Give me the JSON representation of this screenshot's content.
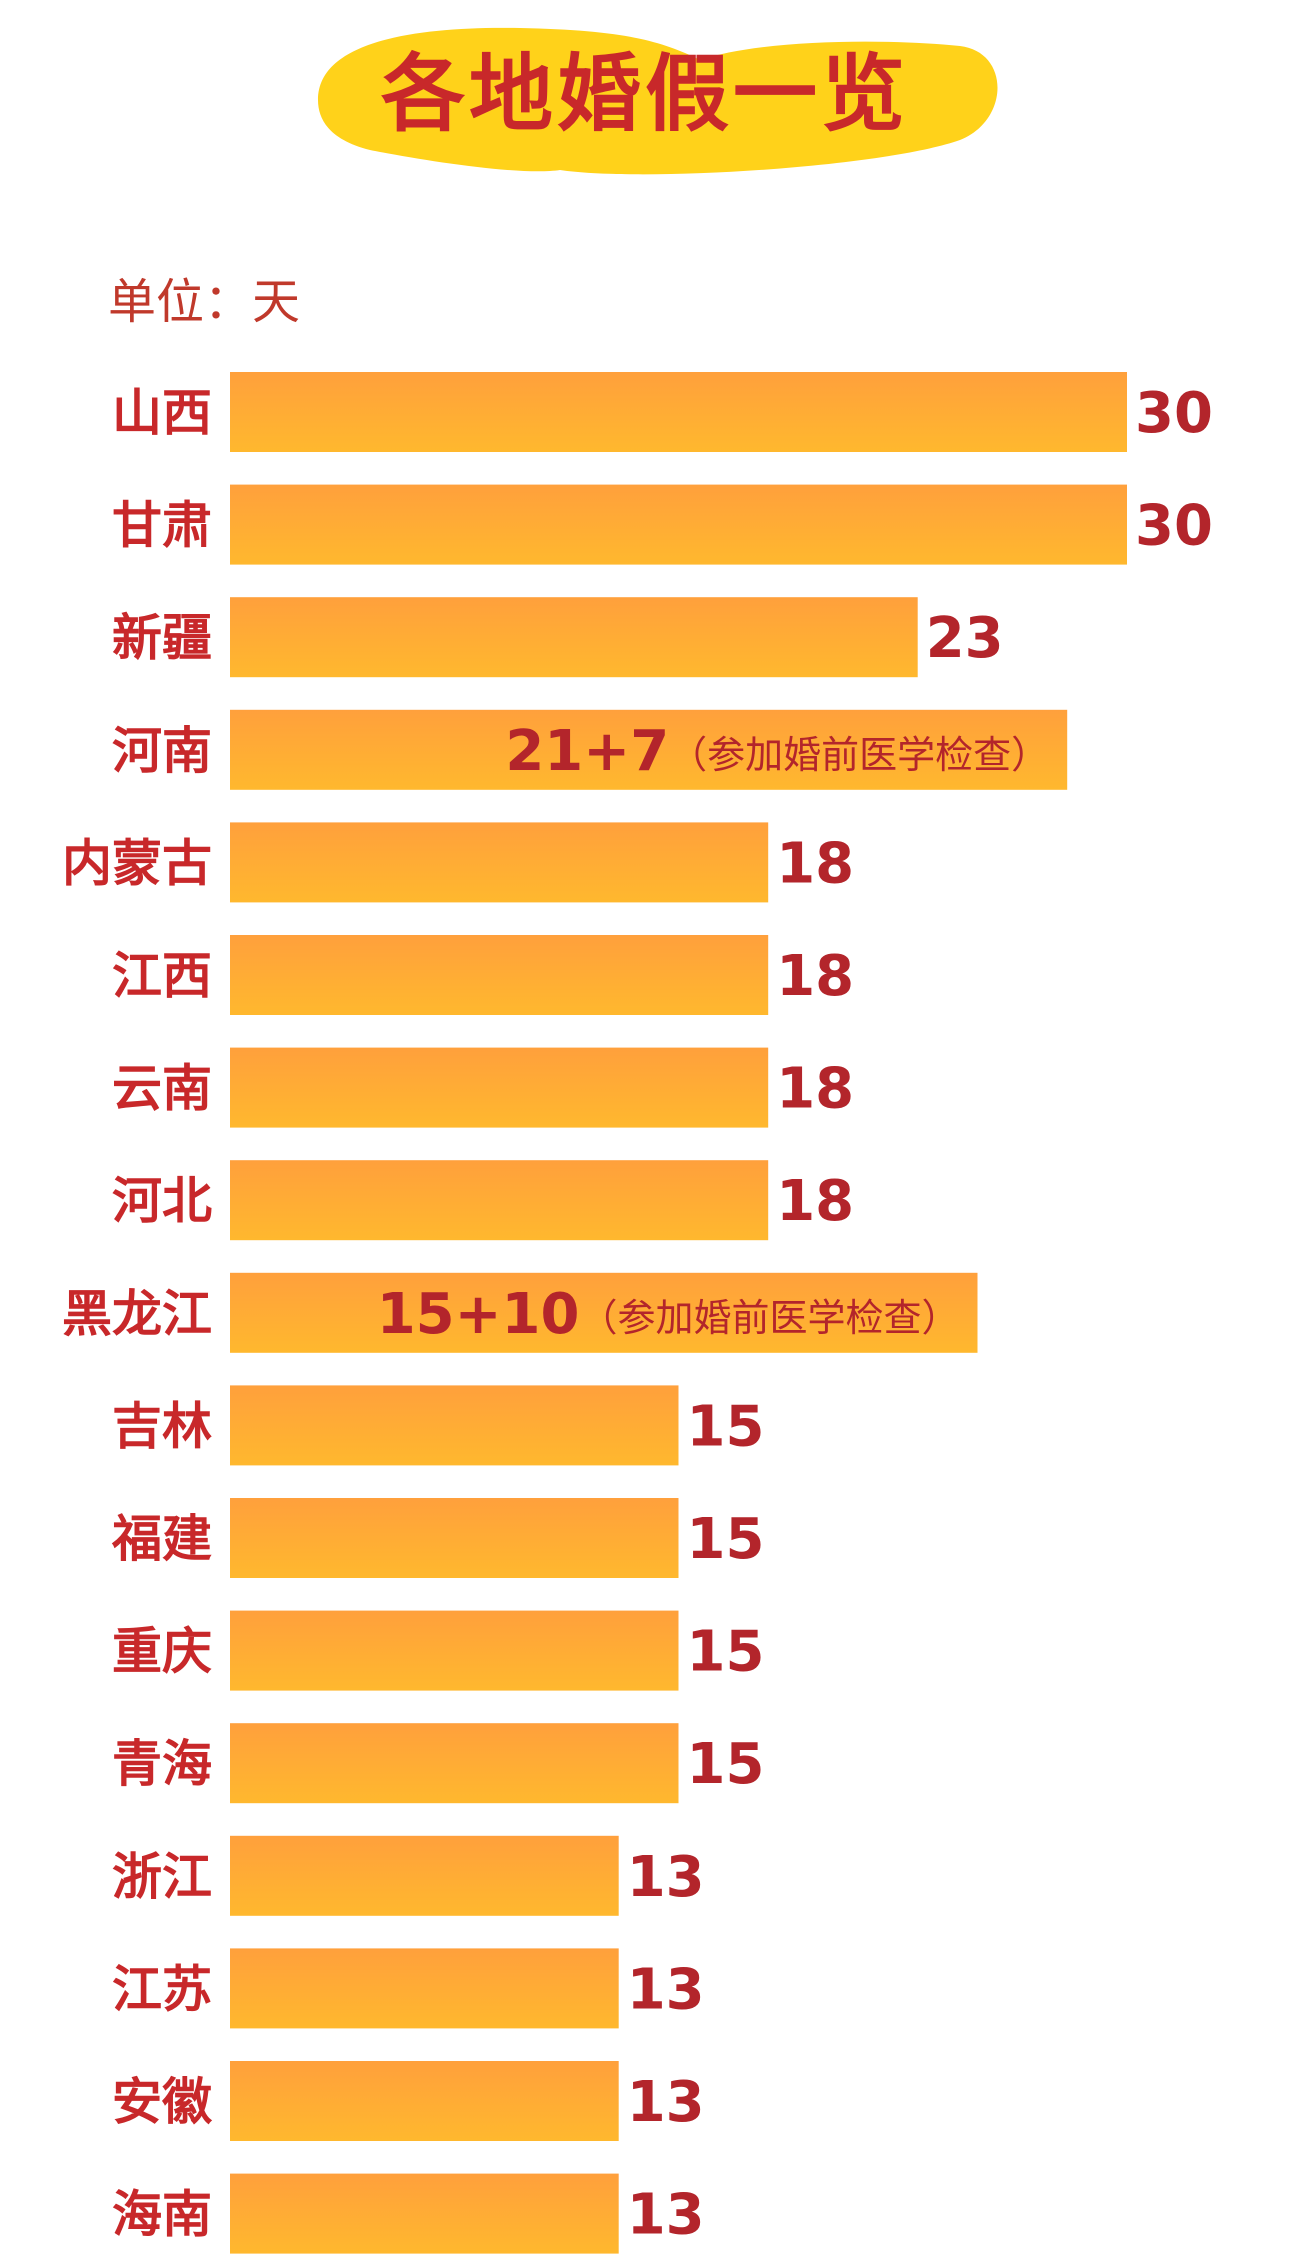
{
  "page": {
    "title": "各地婚假一览",
    "unit": "单位：天"
  },
  "colors": {
    "title_badge": "#FFD21A",
    "title_text": "#C8282A",
    "label_text": "#C8282A",
    "value_text": "#B3252B",
    "bar_top": "#FFA03C",
    "bar_bottom": "#FFB82E"
  },
  "chart_data": {
    "type": "bar",
    "orientation": "horizontal",
    "title": "各地婚假一览",
    "unit": "单位：天",
    "xlim": [
      0,
      30
    ],
    "grid": false,
    "legend": "none",
    "categories": [
      "山西",
      "甘肃",
      "新疆",
      "河南",
      "内蒙古",
      "江西",
      "云南",
      "河北",
      "黑龙江",
      "吉林",
      "福建",
      "重庆",
      "青海",
      "浙江",
      "江苏",
      "安徽",
      "海南"
    ],
    "values": [
      30,
      30,
      23,
      28,
      18,
      18,
      18,
      18,
      25,
      15,
      15,
      15,
      15,
      13,
      13,
      13,
      13
    ],
    "value_labels": [
      "30",
      "30",
      "23",
      "21+7",
      "18",
      "18",
      "18",
      "18",
      "15+10",
      "15",
      "15",
      "15",
      "15",
      "13",
      "13",
      "13",
      "13"
    ],
    "notes": [
      "",
      "",
      "",
      "（参加婚前医学检查）",
      "",
      "",
      "",
      "",
      "（参加婚前医学检查）",
      "",
      "",
      "",
      "",
      "",
      "",
      "",
      ""
    ]
  }
}
